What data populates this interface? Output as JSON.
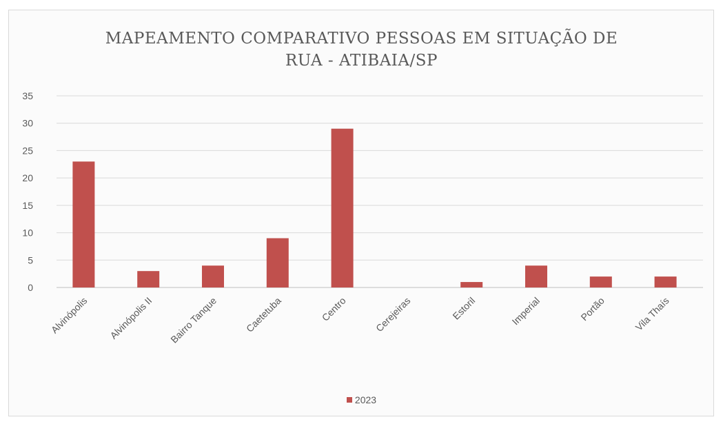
{
  "chart_data": {
    "type": "bar",
    "title_lines": [
      "MAPEAMENTO COMPARATIVO PESSOAS EM SITUAÇÃO DE",
      "RUA - ATIBAIA/SP"
    ],
    "categories": [
      "Alvinópolis",
      "Alvinópolis II",
      "Bairro Tanque",
      "Caetetuba",
      "Centro",
      "Cerejeiras",
      "Estoril",
      "Imperial",
      "Portão",
      "Vila Thaís"
    ],
    "series": [
      {
        "name": "2023",
        "values": [
          23,
          3,
          4,
          9,
          29,
          0,
          1,
          4,
          2,
          2
        ],
        "color": "#c0504d"
      }
    ],
    "ylim": [
      0,
      35
    ],
    "yticks": [
      "0",
      "5",
      "10",
      "15",
      "20",
      "25",
      "30",
      "35"
    ],
    "grid": true,
    "legend_position": "bottom"
  }
}
